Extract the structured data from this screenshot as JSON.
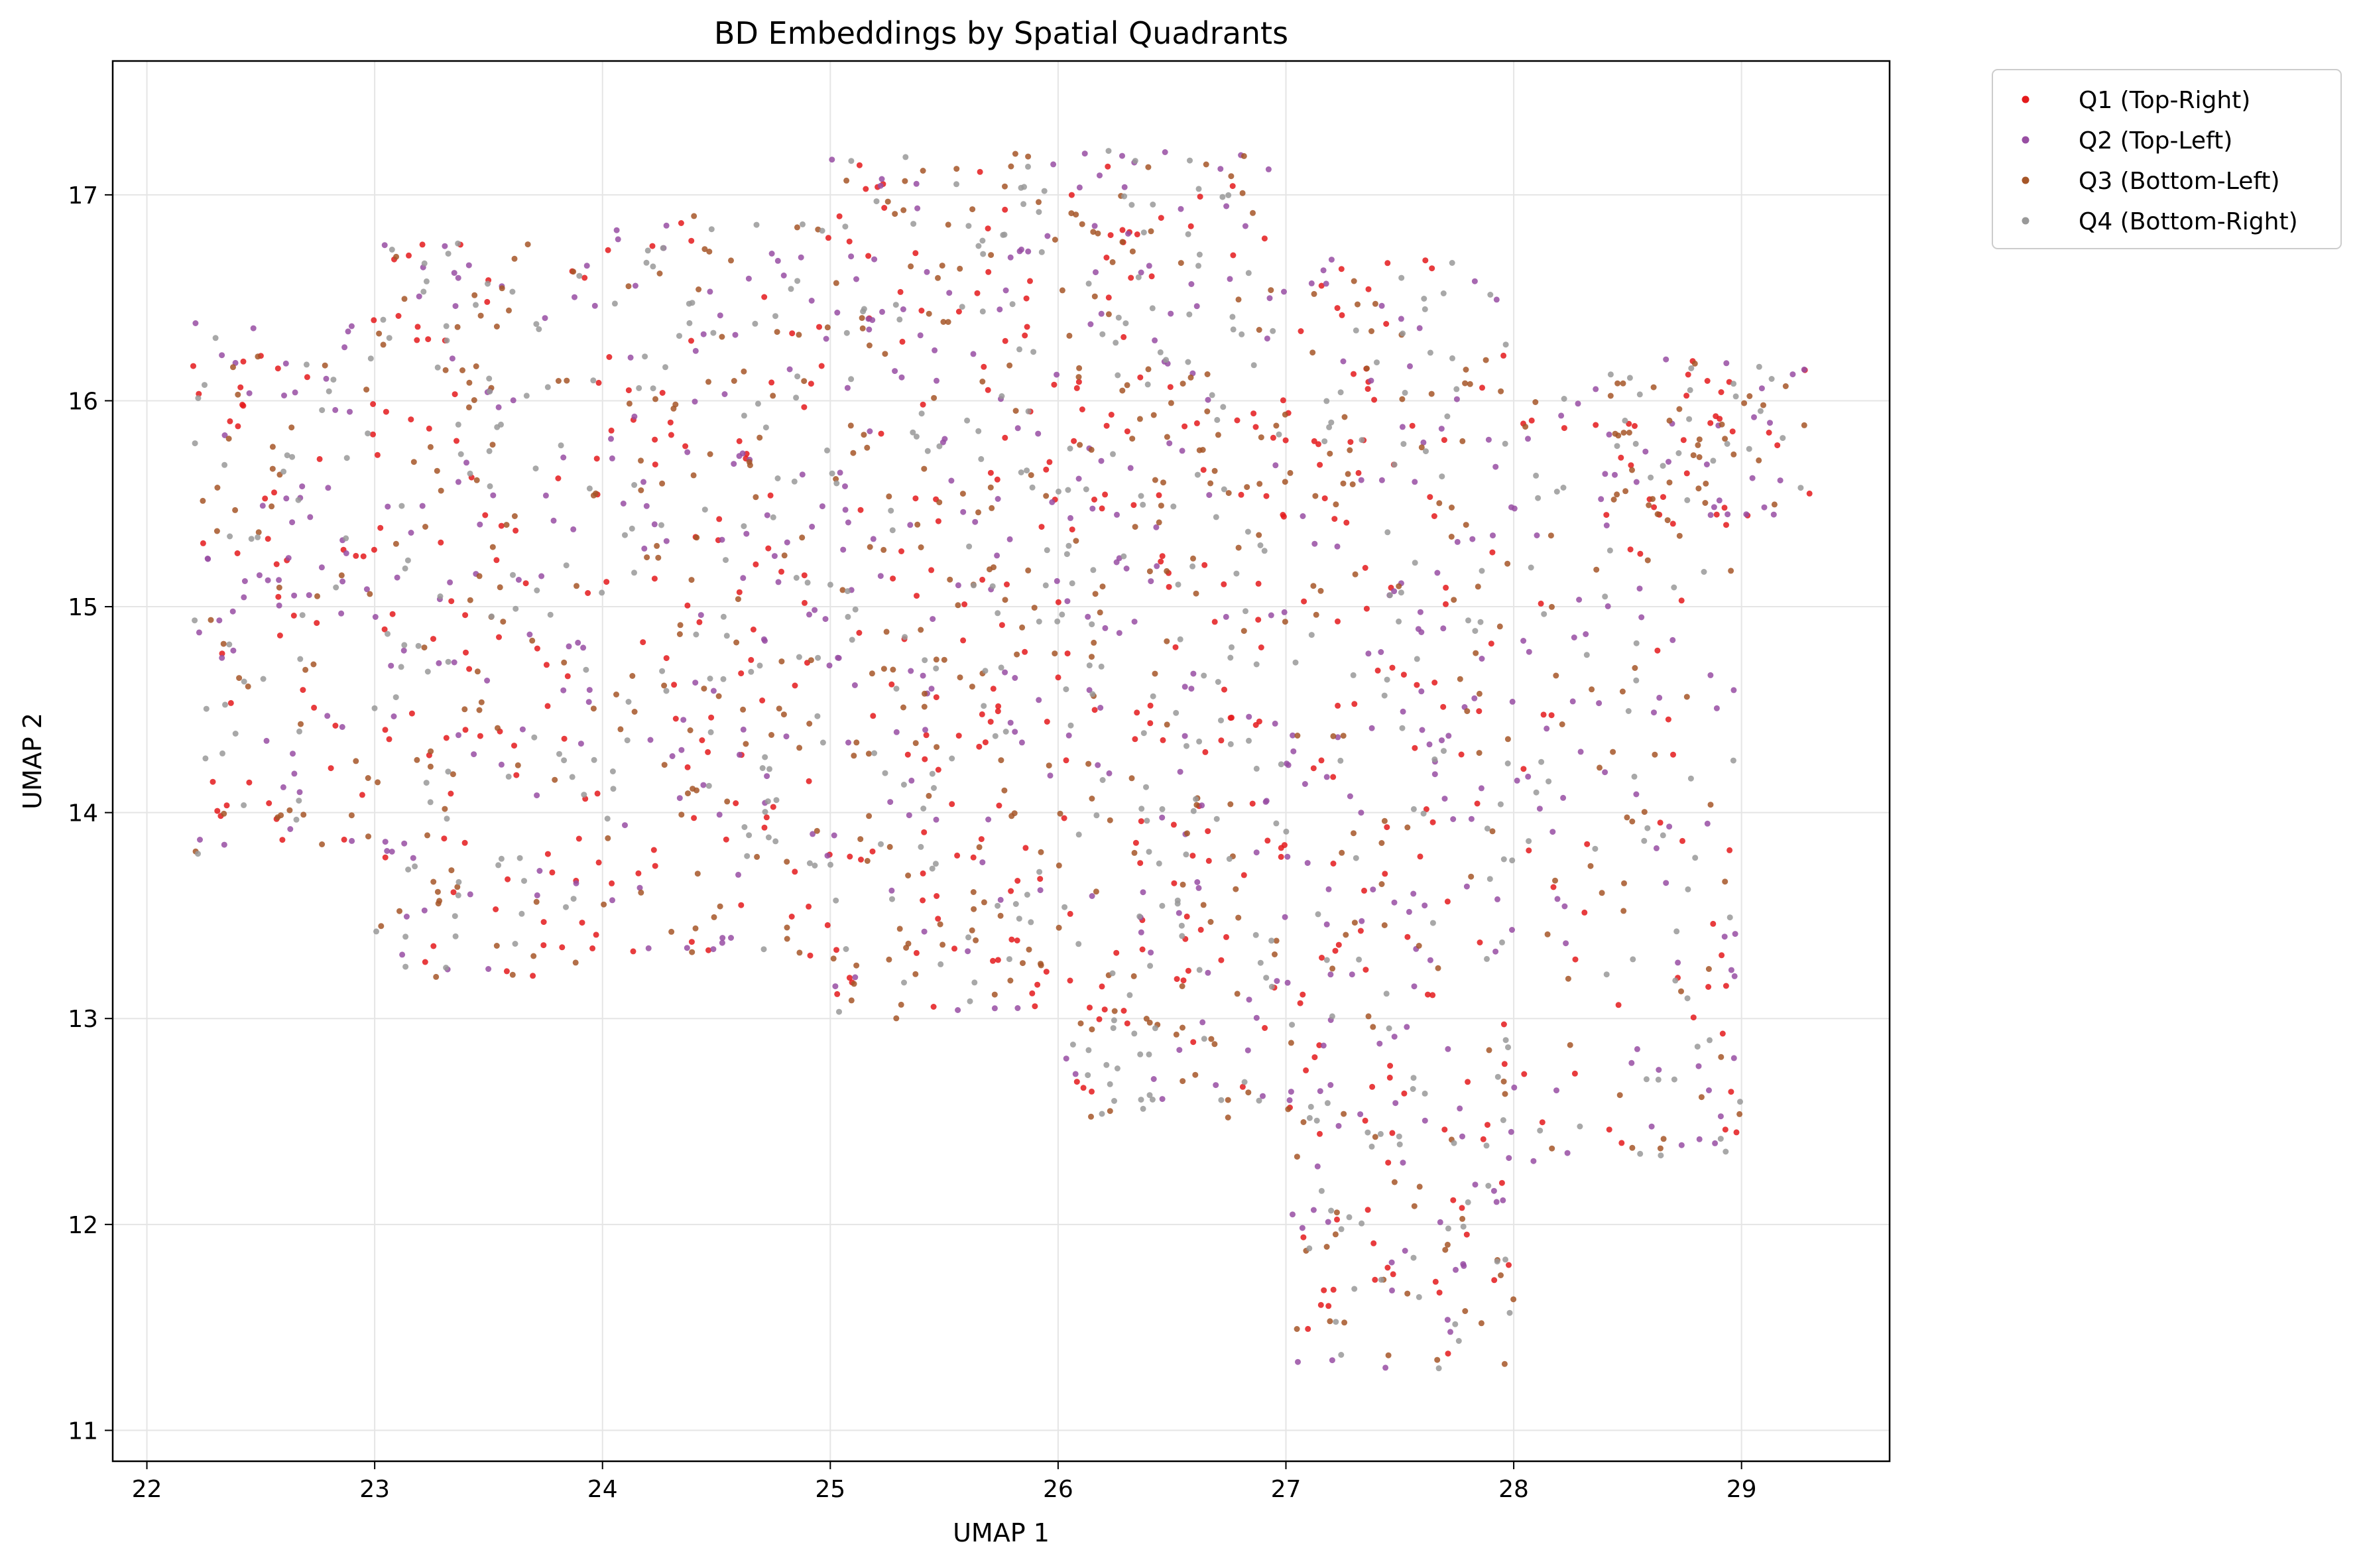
{
  "chart_data": {
    "type": "scatter",
    "title": "BD Embeddings by Spatial Quadrants",
    "xlabel": "UMAP 1",
    "ylabel": "UMAP 2",
    "xlim": [
      21.85,
      29.65
    ],
    "ylim": [
      10.85,
      17.65
    ],
    "xticks": [
      22,
      23,
      24,
      25,
      26,
      27,
      28,
      29
    ],
    "yticks": [
      11,
      12,
      13,
      14,
      15,
      16,
      17
    ],
    "grid": true,
    "legend_position": "outside upper right",
    "point_count_per_series": 600,
    "series": [
      {
        "name": "Q1 (Top-Right)",
        "color": "#e41a1c"
      },
      {
        "name": "Q2 (Top-Left)",
        "color": "#984ea3"
      },
      {
        "name": "Q3 (Bottom-Left)",
        "color": "#a65628"
      },
      {
        "name": "Q4 (Bottom-Right)",
        "color": "#999999"
      }
    ],
    "regions": [
      {
        "x": [
          22.2,
          23.0
        ],
        "y": [
          13.8,
          16.4
        ],
        "weight": 1.0
      },
      {
        "x": [
          23.0,
          24.0
        ],
        "y": [
          13.2,
          16.8
        ],
        "weight": 2.0
      },
      {
        "x": [
          24.0,
          25.0
        ],
        "y": [
          13.3,
          16.9
        ],
        "weight": 2.0
      },
      {
        "x": [
          25.0,
          26.0
        ],
        "y": [
          13.0,
          17.2
        ],
        "weight": 2.4
      },
      {
        "x": [
          26.0,
          27.0
        ],
        "y": [
          12.5,
          17.25
        ],
        "weight": 2.8
      },
      {
        "x": [
          27.0,
          28.0
        ],
        "y": [
          11.3,
          16.7
        ],
        "weight": 2.6
      },
      {
        "x": [
          28.0,
          29.0
        ],
        "y": [
          12.3,
          16.3
        ],
        "weight": 1.3
      },
      {
        "x": [
          28.4,
          29.3
        ],
        "y": [
          15.4,
          16.2
        ],
        "weight": 0.6
      }
    ]
  }
}
